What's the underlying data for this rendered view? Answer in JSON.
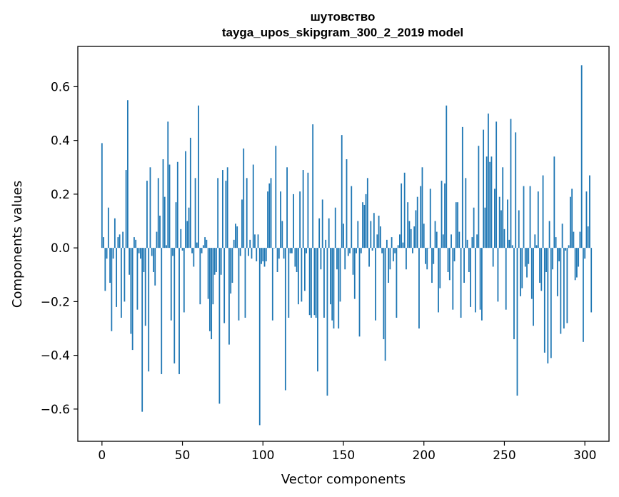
{
  "chart_data": {
    "type": "bar",
    "title_line1": "шутовство",
    "title_line2": "tayga_upos_skipgram_300_2_2019 model",
    "xlabel": "Vector components",
    "ylabel": "Components values",
    "xlim": [
      -15,
      315
    ],
    "ylim": [
      -0.72,
      0.75
    ],
    "xticks": [
      0,
      50,
      100,
      150,
      200,
      250,
      300
    ],
    "xtick_labels": [
      "0",
      "50",
      "100",
      "150",
      "200",
      "250",
      "300"
    ],
    "yticks": [
      -0.6,
      -0.4,
      -0.2,
      0.0,
      0.2,
      0.4,
      0.6
    ],
    "ytick_labels": [
      "−0.6",
      "−0.4",
      "−0.2",
      "0.0",
      "0.2",
      "0.4",
      "0.6"
    ],
    "bar_color": "#1f77b4",
    "grid": false,
    "values": [
      0.39,
      0.04,
      -0.16,
      -0.04,
      0.15,
      -0.13,
      -0.31,
      -0.04,
      0.11,
      -0.22,
      0.04,
      0.05,
      -0.26,
      0.06,
      -0.2,
      0.29,
      0.55,
      -0.1,
      -0.32,
      -0.38,
      0.04,
      0.03,
      -0.23,
      -0.02,
      -0.04,
      -0.61,
      -0.09,
      -0.29,
      0.25,
      -0.46,
      0.3,
      -0.03,
      -0.09,
      -0.14,
      0.06,
      0.26,
      0.12,
      -0.47,
      0.33,
      0.19,
      0.01,
      0.47,
      0.31,
      -0.27,
      -0.03,
      -0.43,
      0.17,
      0.32,
      -0.47,
      0.07,
      -0.01,
      -0.24,
      0.36,
      0.1,
      0.15,
      0.41,
      -0.02,
      -0.07,
      0.26,
      0.02,
      0.53,
      -0.21,
      -0.02,
      0.01,
      0.04,
      0.03,
      -0.19,
      -0.31,
      -0.34,
      -0.21,
      -0.1,
      -0.09,
      0.26,
      -0.58,
      -0.1,
      0.29,
      -0.28,
      0.25,
      0.3,
      -0.36,
      -0.17,
      -0.13,
      0.03,
      0.09,
      0.08,
      -0.27,
      -0.03,
      0.18,
      0.37,
      -0.26,
      0.26,
      -0.03,
      0.03,
      -0.04,
      0.31,
      0.05,
      -0.05,
      0.05,
      -0.66,
      -0.06,
      -0.05,
      -0.07,
      -0.05,
      0.21,
      0.24,
      0.26,
      -0.27,
      0.0,
      0.38,
      -0.09,
      -0.04,
      0.21,
      0.1,
      -0.04,
      -0.53,
      0.3,
      -0.26,
      -0.02,
      -0.02,
      0.2,
      -0.07,
      -0.09,
      -0.21,
      0.21,
      -0.2,
      0.29,
      -0.16,
      -0.02,
      0.28,
      -0.25,
      -0.26,
      0.46,
      -0.25,
      -0.26,
      -0.46,
      0.11,
      -0.08,
      0.18,
      -0.26,
      0.03,
      -0.55,
      0.11,
      -0.21,
      -0.27,
      -0.3,
      0.15,
      -0.08,
      -0.3,
      -0.2,
      0.42,
      0.09,
      -0.08,
      0.33,
      -0.03,
      -0.02,
      0.23,
      -0.1,
      -0.19,
      -0.02,
      0.1,
      -0.33,
      -0.02,
      0.17,
      0.16,
      0.2,
      0.26,
      -0.07,
      0.1,
      -0.01,
      0.13,
      -0.27,
      0.05,
      0.12,
      0.08,
      -0.02,
      -0.34,
      -0.42,
      0.03,
      -0.13,
      -0.08,
      0.04,
      -0.05,
      -0.02,
      -0.26,
      0.01,
      0.05,
      0.24,
      0.02,
      0.28,
      -0.08,
      0.17,
      0.1,
      0.07,
      -0.02,
      0.08,
      0.14,
      0.19,
      -0.3,
      0.23,
      0.3,
      0.09,
      -0.06,
      -0.08,
      0.0,
      0.22,
      -0.13,
      -0.06,
      0.1,
      0.06,
      -0.24,
      -0.15,
      0.25,
      0.05,
      0.24,
      0.53,
      -0.09,
      -0.12,
      0.05,
      -0.23,
      -0.05,
      0.17,
      0.17,
      0.06,
      -0.26,
      0.45,
      -0.13,
      0.26,
      0.03,
      -0.09,
      -0.22,
      0.04,
      0.15,
      -0.24,
      0.05,
      0.38,
      -0.23,
      -0.27,
      0.44,
      0.15,
      0.34,
      0.5,
      0.32,
      0.34,
      -0.07,
      0.22,
      0.47,
      -0.2,
      0.19,
      0.14,
      0.3,
      0.07,
      -0.23,
      0.18,
      0.03,
      0.48,
      0.01,
      -0.34,
      0.43,
      -0.55,
      0.14,
      -0.18,
      -0.15,
      0.23,
      -0.07,
      -0.11,
      -0.06,
      0.23,
      -0.19,
      -0.29,
      0.05,
      0.01,
      0.21,
      -0.13,
      -0.16,
      0.27,
      -0.39,
      -0.09,
      -0.43,
      0.1,
      -0.41,
      -0.08,
      0.34,
      0.04,
      -0.18,
      -0.05,
      -0.32,
      0.09,
      -0.3,
      -0.01,
      -0.28,
      0.01,
      0.19,
      0.22,
      0.06,
      -0.12,
      -0.11,
      -0.07,
      0.06,
      0.68,
      -0.35,
      -0.04,
      0.21,
      0.08,
      0.27,
      -0.24
    ]
  }
}
